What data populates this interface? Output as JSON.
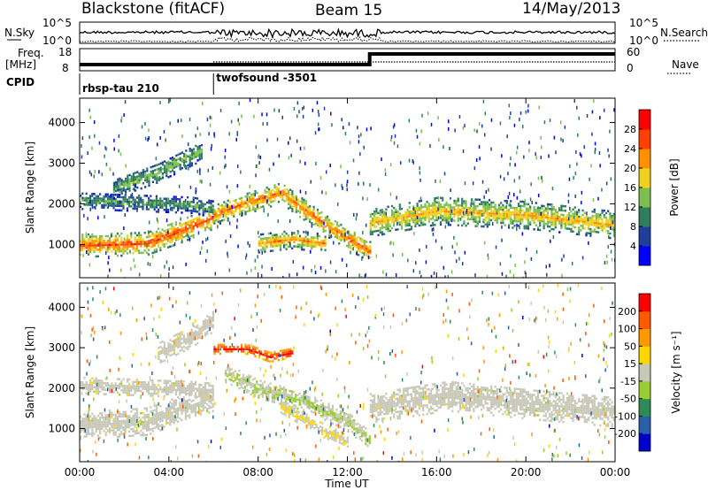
{
  "header": {
    "station": "Blackstone (fitACF)",
    "beam": "Beam 15",
    "date": "14/May/2013"
  },
  "summary_panels": {
    "nsky_label": "N.Sky",
    "nsearch_label": "N.Search",
    "freq_label_1": "Freq.",
    "freq_label_2": "[MHz]",
    "nave_label": "Nave",
    "cpid_label": "CPID",
    "nsky_ticks": [
      "10^5",
      "10^0"
    ],
    "nsearch_ticks": [
      "10^5",
      "10^0"
    ],
    "freq_ticks": [
      "18",
      "8"
    ],
    "nave_ticks": [
      "60",
      "0"
    ]
  },
  "cpid_segments": [
    {
      "label": "rbsp-tau 210",
      "start_hour": 0,
      "end_hour": 6
    },
    {
      "label": "twofsound -3501",
      "start_hour": 6,
      "end_hour": 24
    }
  ],
  "colors": {
    "power_scale": [
      "#0000ff",
      "#1f3f9f",
      "#2e7d5e",
      "#7cbf4f",
      "#f0d020",
      "#ff9000",
      "#ff4000",
      "#ff0000"
    ],
    "velocity_scale": [
      "#0000cc",
      "#2a5faa",
      "#2e8b57",
      "#9acd32",
      "#c8c8b8",
      "#ffd700",
      "#ff9900",
      "#ff5a00",
      "#ff0000"
    ]
  },
  "chart_data": [
    {
      "type": "heatmap",
      "panel": "power",
      "ylabel": "Slant Range [km]",
      "xlim": [
        0,
        24
      ],
      "ylim": [
        180,
        4600
      ],
      "yticks": [
        1000,
        2000,
        3000,
        4000
      ],
      "colorbar": {
        "label": "Power [dB]",
        "ticks": [
          "28",
          "24",
          "20",
          "16",
          "12",
          "8",
          "4"
        ],
        "range": [
          0,
          32
        ]
      },
      "echo_bands": [
        {
          "x": [
            0.0,
            3.0,
            4.5,
            6.0
          ],
          "y_center": [
            1000,
            1050,
            1350,
            1700
          ],
          "width": 280,
          "value": 26
        },
        {
          "x": [
            0.0,
            2.5,
            5.0,
            6.0
          ],
          "y_center": [
            2100,
            2050,
            2000,
            1900
          ],
          "width": 200,
          "value": 12
        },
        {
          "x": [
            1.5,
            3.5,
            5.5
          ],
          "y_center": [
            2400,
            2800,
            3350
          ],
          "width": 240,
          "value": 14
        },
        {
          "x": [
            6.0,
            7.5,
            9.0,
            11.0,
            13.0
          ],
          "y_center": [
            1750,
            2050,
            2300,
            1500,
            850
          ],
          "width": 260,
          "value": 24
        },
        {
          "x": [
            8.0,
            9.5,
            11.0
          ],
          "y_center": [
            1050,
            1150,
            1050
          ],
          "width": 220,
          "value": 22
        },
        {
          "x": [
            13.0,
            16.0,
            20.0,
            24.0
          ],
          "y_center": [
            1550,
            1850,
            1750,
            1500
          ],
          "width": 330,
          "value": 20
        }
      ]
    },
    {
      "type": "heatmap",
      "panel": "velocity",
      "ylabel": "Slant Range [km]",
      "xlabel": "Time UT",
      "xlim": [
        0,
        24
      ],
      "ylim": [
        180,
        4600
      ],
      "yticks": [
        1000,
        2000,
        3000,
        4000
      ],
      "xticks": [
        "00:00",
        "04:00",
        "08:00",
        "12:00",
        "16:00",
        "20:00",
        "00:00"
      ],
      "xtick_hours": [
        0,
        4,
        8,
        12,
        16,
        20,
        24
      ],
      "colorbar": {
        "label": "Velocity [m s⁻¹]",
        "ticks": [
          "200",
          "100",
          "50",
          "15",
          "-15",
          "-50",
          "-100",
          "-200"
        ],
        "range": [
          -250,
          250
        ]
      },
      "echo_bands": [
        {
          "x": [
            0.0,
            3.0,
            4.5,
            6.0
          ],
          "y_center": [
            1100,
            1200,
            1500,
            1800
          ],
          "width": 330,
          "value": 0
        },
        {
          "x": [
            0.0,
            2.5,
            5.0,
            6.0
          ],
          "y_center": [
            2100,
            2050,
            2000,
            1950
          ],
          "width": 200,
          "value": 0
        },
        {
          "x": [
            3.5,
            5.0,
            6.0
          ],
          "y_center": [
            2900,
            3300,
            3700
          ],
          "width": 260,
          "value": 5
        },
        {
          "x": [
            6.0,
            7.5,
            8.5,
            9.5
          ],
          "y_center": [
            3000,
            3000,
            2800,
            2900
          ],
          "width": 120,
          "value": 220
        },
        {
          "x": [
            6.5,
            8.0,
            10.0,
            12.0,
            13.0
          ],
          "y_center": [
            2400,
            2000,
            1700,
            1200,
            700
          ],
          "width": 220,
          "value": -30
        },
        {
          "x": [
            9.0,
            10.5,
            12.0
          ],
          "y_center": [
            1600,
            1100,
            700
          ],
          "width": 180,
          "value": 30
        },
        {
          "x": [
            13.0,
            16.5,
            20.0,
            24.0
          ],
          "y_center": [
            1550,
            1850,
            1650,
            1450
          ],
          "width": 380,
          "value": 0
        }
      ]
    }
  ]
}
